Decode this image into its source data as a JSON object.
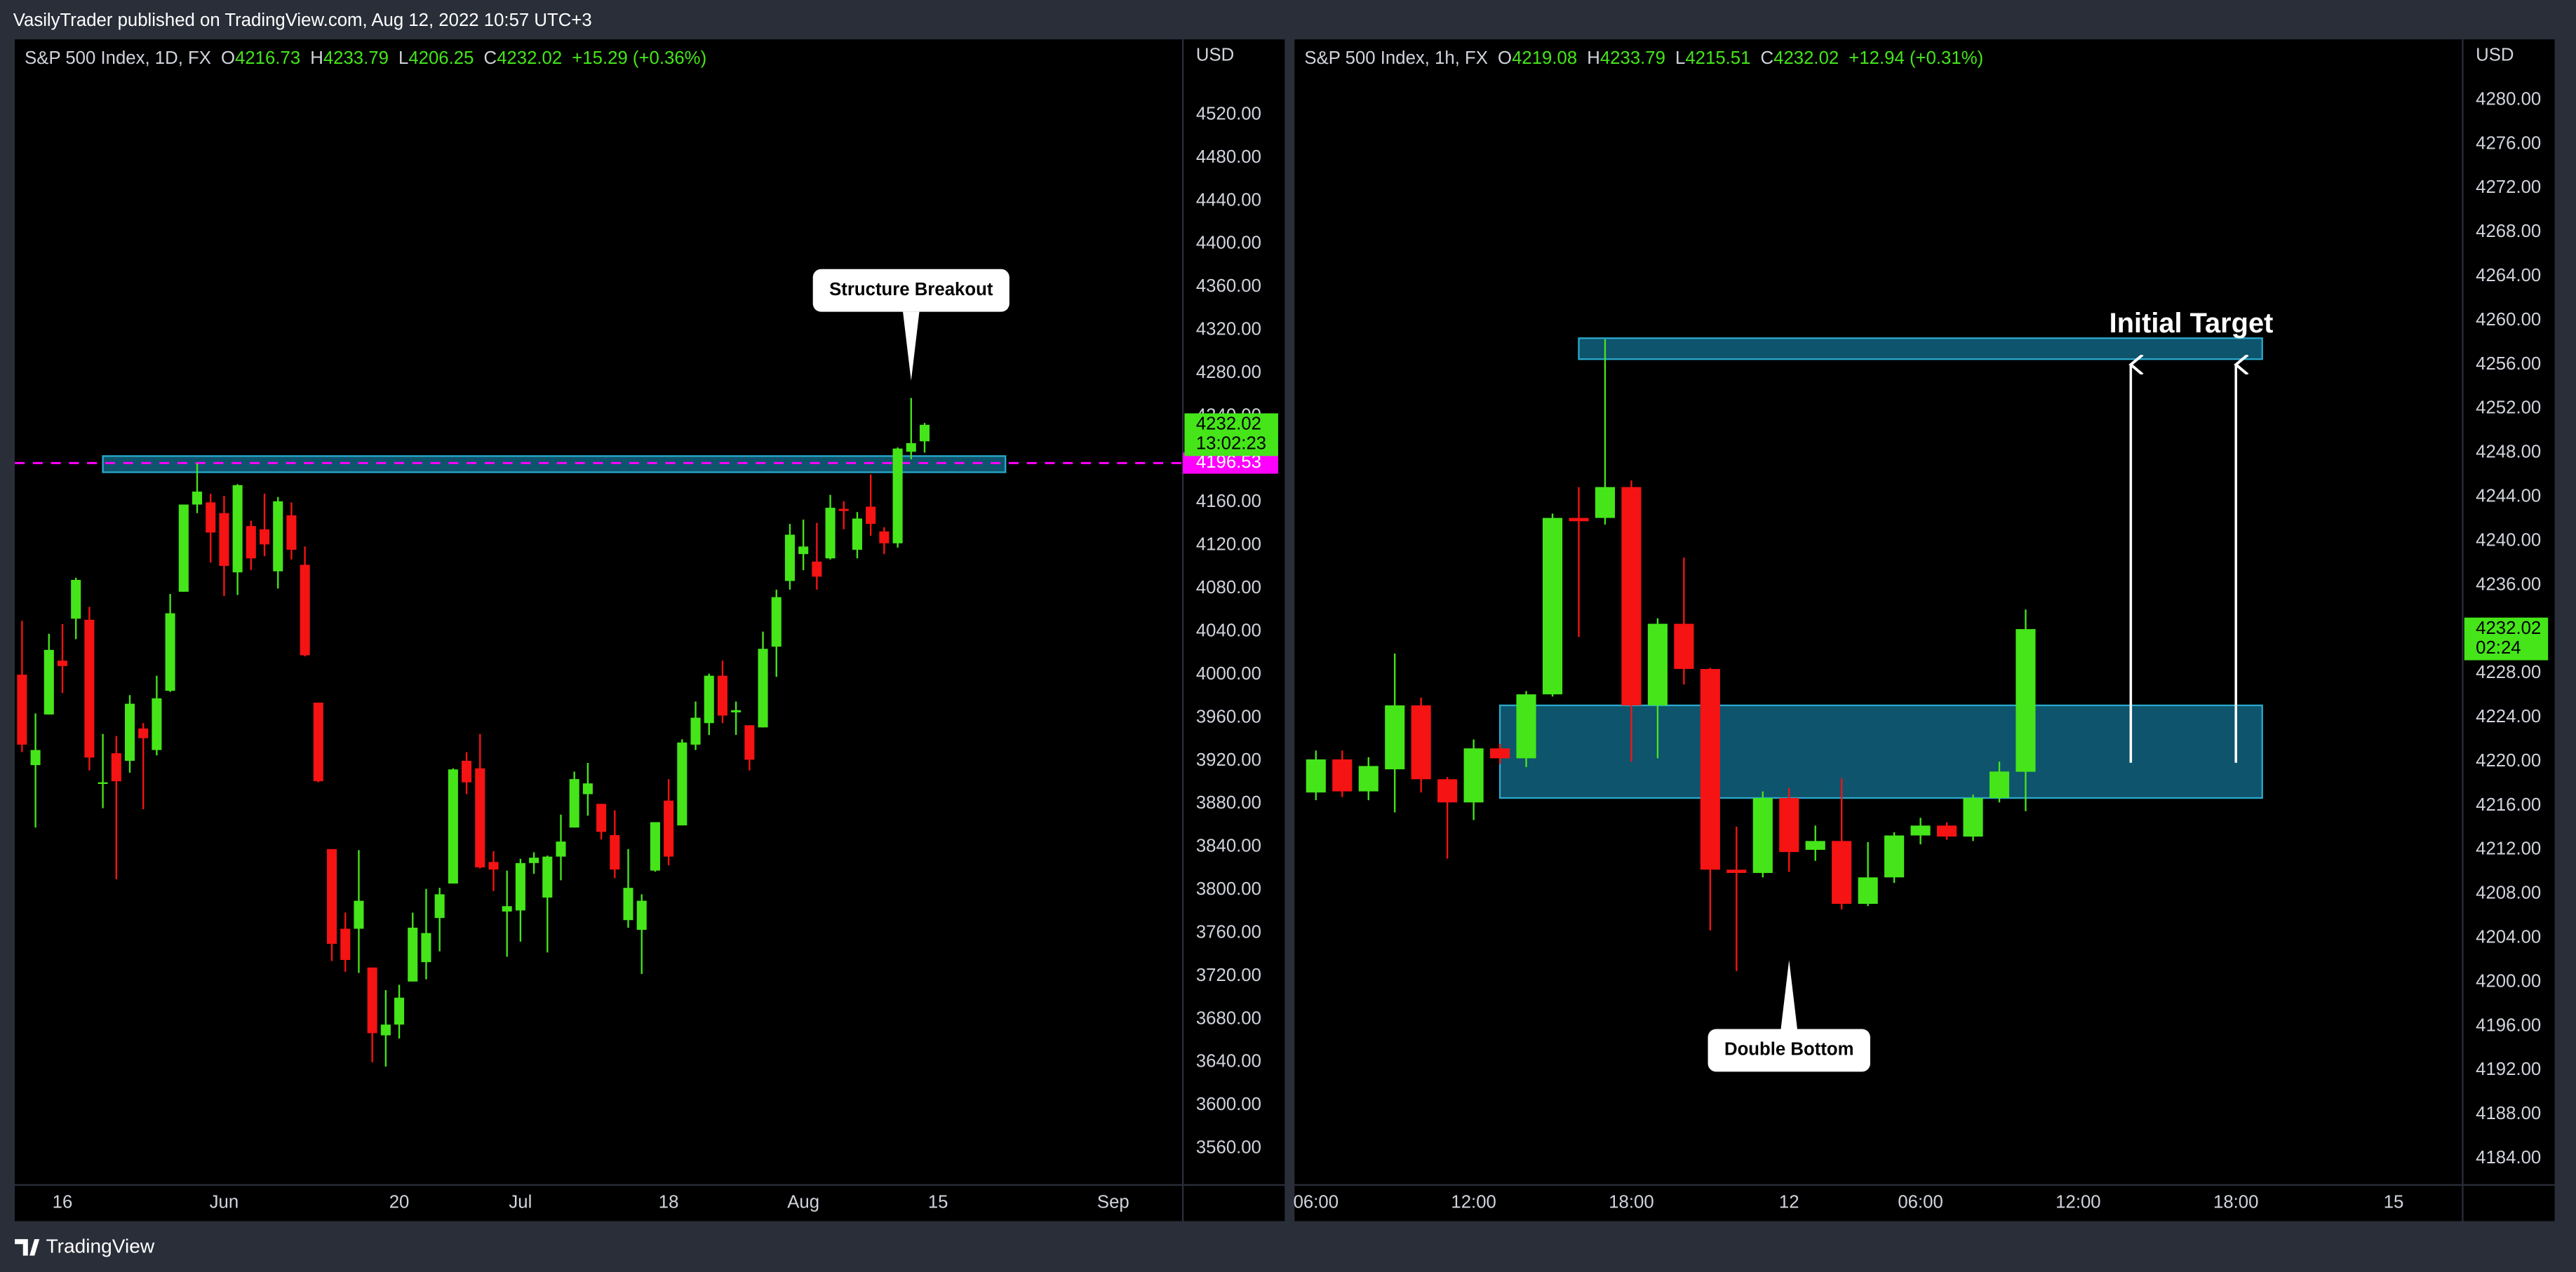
{
  "header": {
    "publisher": "VasilyTrader published on TradingView.com, Aug 12, 2022 10:57 UTC+3"
  },
  "footer": {
    "brand": "TradingView"
  },
  "chart_data": [
    {
      "type": "candlestick",
      "symbol": "S&P 500 Index, 1D, FX",
      "ohlc_labels": [
        "O",
        "H",
        "L",
        "C"
      ],
      "legend_values": [
        4216.73,
        4233.79,
        4206.25,
        4232.02
      ],
      "change": "+15.29 (+0.36%)",
      "currency": "USD",
      "categories": [
        null,
        null,
        null,
        "16",
        null,
        null,
        null,
        null,
        null,
        null,
        null,
        null,
        null,
        null,
        null,
        "Jun",
        null,
        null,
        null,
        null,
        null,
        null,
        null,
        null,
        null,
        null,
        null,
        null,
        "20",
        null,
        null,
        null,
        null,
        null,
        null,
        null,
        null,
        "Jul",
        null,
        null,
        null,
        null,
        null,
        null,
        null,
        null,
        null,
        null,
        "18",
        null,
        null,
        null,
        null,
        null,
        null,
        null,
        null,
        null,
        "Aug",
        null,
        null,
        null,
        null,
        null,
        null,
        null,
        null,
        null,
        "15",
        null,
        null,
        null,
        null,
        null,
        null,
        null,
        null,
        null,
        null,
        null,
        null,
        "Sep"
      ],
      "open": [
        4000,
        3916,
        3963,
        4013,
        4052,
        4051,
        3899,
        3927,
        3920,
        3950,
        3930,
        3985,
        4077,
        4158,
        4160,
        4150,
        4095,
        4138,
        4135,
        4096,
        4148,
        4102,
        3974,
        3838,
        3764,
        3764,
        3728,
        3665,
        3675,
        3715,
        3733,
        3774,
        3806,
        3920,
        3913,
        3826,
        3780,
        3781,
        3825,
        3793,
        3831,
        3858,
        3889,
        3880,
        3851,
        3772,
        3763,
        3818,
        3883,
        3860,
        3935,
        3955,
        3999,
        3965,
        3953,
        3951,
        4026,
        4087,
        4112,
        4105,
        4108,
        4154,
        4116,
        4156,
        4133,
        4122,
        4207,
        4216.73,
        null,
        null,
        null,
        null,
        null,
        null,
        null,
        null,
        null,
        null,
        null,
        null,
        null,
        null
      ],
      "high": [
        4050,
        3964,
        4038,
        4047,
        4090,
        4063,
        3945,
        3943,
        3981,
        3955,
        3999,
        4075,
        4158,
        4196,
        4168,
        4166,
        4177,
        4143,
        4168,
        4165,
        4160,
        4119,
        3974,
        3838,
        3779,
        3837,
        3728,
        3707,
        3712,
        3779,
        3801,
        3802,
        3913,
        3928,
        3945,
        3836,
        3818,
        3829,
        3835,
        3832,
        3870,
        3910,
        3918,
        3880,
        3874,
        3838,
        3796,
        3863,
        3903,
        3940,
        3975,
        4001,
        4013,
        3975,
        3953,
        4040,
        4079,
        4140,
        4144,
        4141,
        4167,
        4161,
        4151,
        4186,
        4137,
        4211,
        4257,
        4233.79,
        null,
        null,
        null,
        null,
        null,
        null,
        null,
        null,
        null,
        null,
        null,
        null,
        null,
        null
      ],
      "low": [
        3928,
        3858,
        3963,
        3983,
        4033,
        3911,
        3876,
        3810,
        3909,
        3875,
        3925,
        3984,
        4077,
        4150,
        4104,
        4073,
        4074,
        4097,
        4110,
        4080,
        4107,
        4017,
        3900,
        3734,
        3724,
        3723,
        3640,
        3636,
        3662,
        3715,
        3717,
        3743,
        3806,
        3889,
        3820,
        3799,
        3738,
        3752,
        3815,
        3742,
        3809,
        3858,
        3869,
        3847,
        3811,
        3765,
        3722,
        3817,
        3823,
        3860,
        3930,
        3944,
        3955,
        3944,
        3911,
        3951,
        3998,
        4079,
        4097,
        4079,
        4107,
        4135,
        4108,
        4129,
        4112,
        4118,
        4200,
        4206.25,
        null,
        null,
        null,
        null,
        null,
        null,
        null,
        null,
        null,
        null,
        null,
        null,
        null,
        null
      ],
      "close": [
        3935,
        3930,
        4023,
        4008,
        4088,
        3923,
        3900,
        3901,
        3973,
        3941,
        3978,
        4057,
        4158,
        4170,
        4132,
        4101,
        4176,
        4108,
        4121,
        4161,
        4116,
        4018,
        3901,
        3750,
        3735,
        3790,
        3667,
        3675,
        3700,
        3765,
        3760,
        3796,
        3912,
        3900,
        3821,
        3819,
        3785,
        3825,
        3830,
        3831,
        3845,
        3903,
        3899,
        3854,
        3819,
        3802,
        3790,
        3863,
        3831,
        3937,
        3960,
        3999,
        3962,
        3967,
        3921,
        4024,
        4072,
        4130,
        4119,
        4091,
        4155,
        4152,
        4145,
        4140,
        4122,
        4210,
        4215,
        4232.02,
        null,
        null,
        null,
        null,
        null,
        null,
        null,
        null,
        null,
        null,
        null,
        null,
        null,
        null
      ],
      "up_color": "#45e51a",
      "down_color": "#f61313",
      "ylim": [
        3526,
        4590
      ],
      "yticks": [
        {
          "value": 3560,
          "label": "3560.00"
        },
        {
          "value": 3600,
          "label": "3600.00"
        },
        {
          "value": 3640,
          "label": "3640.00"
        },
        {
          "value": 3680,
          "label": "3680.00"
        },
        {
          "value": 3720,
          "label": "3720.00"
        },
        {
          "value": 3760,
          "label": "3760.00"
        },
        {
          "value": 3800,
          "label": "3800.00"
        },
        {
          "value": 3840,
          "label": "3840.00"
        },
        {
          "value": 3880,
          "label": "3880.00"
        },
        {
          "value": 3920,
          "label": "3920.00"
        },
        {
          "value": 3960,
          "label": "3960.00"
        },
        {
          "value": 4000,
          "label": "4000.00"
        },
        {
          "value": 4040,
          "label": "4040.00"
        },
        {
          "value": 4080,
          "label": "4080.00"
        },
        {
          "value": 4120,
          "label": "4120.00"
        },
        {
          "value": 4160,
          "label": "4160.00"
        },
        {
          "value": 4200,
          "label": "4200.00"
        },
        {
          "value": 4240,
          "label": "4240.00"
        },
        {
          "value": 4280,
          "label": "4280.00"
        },
        {
          "value": 4320,
          "label": "4320.00"
        },
        {
          "value": 4360,
          "label": "4360.00"
        },
        {
          "value": 4400,
          "label": "4400.00"
        },
        {
          "value": 4440,
          "label": "4440.00"
        },
        {
          "value": 4480,
          "label": "4480.00"
        },
        {
          "value": 4520,
          "label": "4520.00"
        }
      ],
      "last_price": 4232.02,
      "countdown": "13:02:23",
      "level": {
        "value": 4196.53,
        "color": "#ff00ff"
      },
      "zones": [
        {
          "start": 6,
          "end": 73,
          "low": 4188,
          "high": 4203
        }
      ],
      "callouts": [
        {
          "text": "Structure Breakout",
          "at": 66,
          "price": 4273,
          "side": "above"
        }
      ]
    },
    {
      "type": "candlestick",
      "symbol": "S&P 500 Index, 1h, FX",
      "ohlc_labels": [
        "O",
        "H",
        "L",
        "C"
      ],
      "legend_values": [
        4219.08,
        4233.79,
        4215.51,
        4232.02
      ],
      "change": "+12.94 (+0.31%)",
      "currency": "USD",
      "categories": [
        "06:00",
        null,
        null,
        null,
        null,
        null,
        "12:00",
        null,
        null,
        null,
        null,
        null,
        "18:00",
        null,
        null,
        null,
        null,
        null,
        "12",
        null,
        null,
        null,
        null,
        "06:00",
        null,
        null,
        null,
        null,
        null,
        "12:00",
        null,
        null,
        null,
        null,
        null,
        "18:00",
        null,
        null,
        null,
        null,
        null,
        "15"
      ],
      "open": [
        4217.2,
        4220.2,
        4217.3,
        4219.3,
        4225.1,
        4218.4,
        4216.3,
        4221.2,
        4220.3,
        4226.1,
        4242.1,
        4242.1,
        4244.9,
        4225.1,
        4232.5,
        4228.4,
        4210.2,
        4209.9,
        4216.7,
        4212,
        4212.8,
        4207.1,
        4209.5,
        4213.3,
        4214.2,
        4213.2,
        4216.7,
        4219.08,
        null,
        null,
        null,
        null,
        null,
        null,
        null,
        null,
        null,
        null,
        null,
        null,
        null,
        null
      ],
      "high": [
        4221,
        4221,
        4220.4,
        4229.8,
        4225.8,
        4218.6,
        4222,
        4221.6,
        4226.4,
        4242.5,
        4244.9,
        4258.3,
        4245.5,
        4233,
        4238.5,
        4228.5,
        4214.1,
        4217.3,
        4217.6,
        4214.2,
        4218.5,
        4212.7,
        4213.6,
        4214.9,
        4214.5,
        4217,
        4220,
        4233.79,
        null,
        null,
        null,
        null,
        null,
        null,
        null,
        null,
        null,
        null,
        null,
        null,
        null,
        null
      ],
      "low": [
        4216.5,
        4216.8,
        4216.5,
        4215.4,
        4217.2,
        4211.2,
        4214.7,
        4219.8,
        4219.5,
        4225.9,
        4231.3,
        4241.5,
        4220,
        4220.3,
        4227,
        4204.7,
        4201,
        4209.5,
        4210,
        4211,
        4206.6,
        4206.9,
        4209,
        4212.5,
        4212.9,
        4212.8,
        4216.3,
        4215.51,
        null,
        null,
        null,
        null,
        null,
        null,
        null,
        null,
        null,
        null,
        null,
        null,
        null,
        null
      ],
      "close": [
        4220.2,
        4217.3,
        4219.6,
        4225.1,
        4218.4,
        4216.3,
        4221.2,
        4220.3,
        4226.1,
        4242.1,
        4241.8,
        4244.9,
        4225.1,
        4232.5,
        4228.4,
        4210.2,
        4209.9,
        4216.7,
        4211.8,
        4212.8,
        4207.1,
        4209.5,
        4213.3,
        4214.2,
        4213.2,
        4216.7,
        4219.1,
        4232.02,
        null,
        null,
        null,
        null,
        null,
        null,
        null,
        null,
        null,
        null,
        null,
        null,
        null,
        null
      ],
      "up_color": "#45e51a",
      "down_color": "#f61313",
      "ylim": [
        4181.6,
        4285.5
      ],
      "yticks": [
        {
          "value": 4184,
          "label": "4184.00"
        },
        {
          "value": 4188,
          "label": "4188.00"
        },
        {
          "value": 4192,
          "label": "4192.00"
        },
        {
          "value": 4196,
          "label": "4196.00"
        },
        {
          "value": 4200,
          "label": "4200.00"
        },
        {
          "value": 4204,
          "label": "4204.00"
        },
        {
          "value": 4208,
          "label": "4208.00"
        },
        {
          "value": 4212,
          "label": "4212.00"
        },
        {
          "value": 4216,
          "label": "4216.00"
        },
        {
          "value": 4220,
          "label": "4220.00"
        },
        {
          "value": 4224,
          "label": "4224.00"
        },
        {
          "value": 4228,
          "label": "4228.00"
        },
        {
          "value": 4232,
          "label": "4232.00"
        },
        {
          "value": 4236,
          "label": "4236.00"
        },
        {
          "value": 4240,
          "label": "4240.00"
        },
        {
          "value": 4244,
          "label": "4244.00"
        },
        {
          "value": 4248,
          "label": "4248.00"
        },
        {
          "value": 4252,
          "label": "4252.00"
        },
        {
          "value": 4256,
          "label": "4256.00"
        },
        {
          "value": 4260,
          "label": "4260.00"
        },
        {
          "value": 4264,
          "label": "4264.00"
        },
        {
          "value": 4268,
          "label": "4268.00"
        },
        {
          "value": 4272,
          "label": "4272.00"
        },
        {
          "value": 4276,
          "label": "4276.00"
        },
        {
          "value": 4280,
          "label": "4280.00"
        }
      ],
      "last_price": 4232.02,
      "countdown": "02:24",
      "zones": [
        {
          "start": 10,
          "end": 36,
          "low": 4256.5,
          "high": 4258.4
        },
        {
          "start": 7,
          "end": 36,
          "low": 4216.7,
          "high": 4225.1
        }
      ],
      "arrows": [
        {
          "at": 31,
          "from": 4219.9,
          "to": 4256
        },
        {
          "at": 35,
          "from": 4219.9,
          "to": 4256
        }
      ],
      "labels": [
        {
          "text": "Initial Target",
          "at": 33.3,
          "price": 4259.6
        }
      ],
      "callouts": [
        {
          "text": "Double Bottom",
          "at": 18,
          "price": 4202,
          "side": "below"
        }
      ]
    }
  ]
}
